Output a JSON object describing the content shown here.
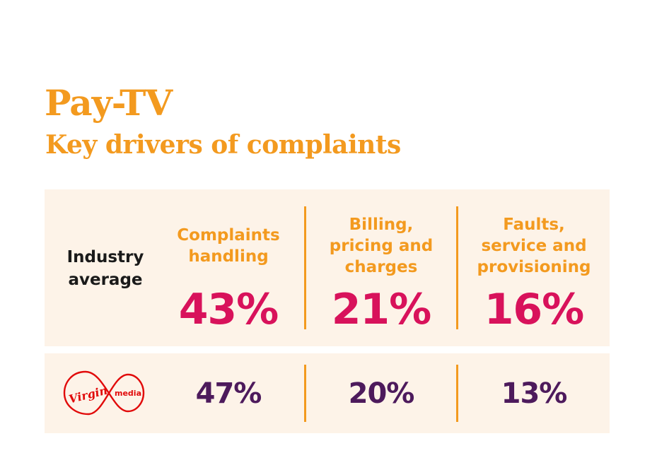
{
  "colors": {
    "accent": "#f39a1f",
    "industry_value": "#d8125b",
    "virgin_value": "#4d1a5c",
    "panel_bg": "#fdf3e8",
    "logo_red": "#e10a0a"
  },
  "header": {
    "title": "Pay-TV",
    "subtitle": "Key drivers of complaints"
  },
  "chart_data": {
    "type": "table",
    "title": "Pay-TV",
    "subtitle": "Key drivers of complaints",
    "categories": [
      "Complaints handling",
      "Billing, pricing and charges",
      "Faults, service and provisioning"
    ],
    "series": [
      {
        "name": "Industry average",
        "values": [
          43,
          21,
          16
        ],
        "labels": [
          "43%",
          "21%",
          "16%"
        ]
      },
      {
        "name": "Virgin media",
        "values": [
          47,
          20,
          13
        ],
        "labels": [
          "47%",
          "20%",
          "13%"
        ]
      }
    ]
  },
  "rows": {
    "industry_label_line1": "Industry",
    "industry_label_line2": "average"
  },
  "categories_display": [
    {
      "line1": "Complaints",
      "line2": "handling",
      "line3": ""
    },
    {
      "line1": "Billing,",
      "line2": "pricing and",
      "line3": "charges"
    },
    {
      "line1": "Faults,",
      "line2": "service and",
      "line3": "provisioning"
    }
  ],
  "logo": {
    "icon": "virgin-media-logo",
    "word1": "Virgin",
    "word2": "media"
  }
}
